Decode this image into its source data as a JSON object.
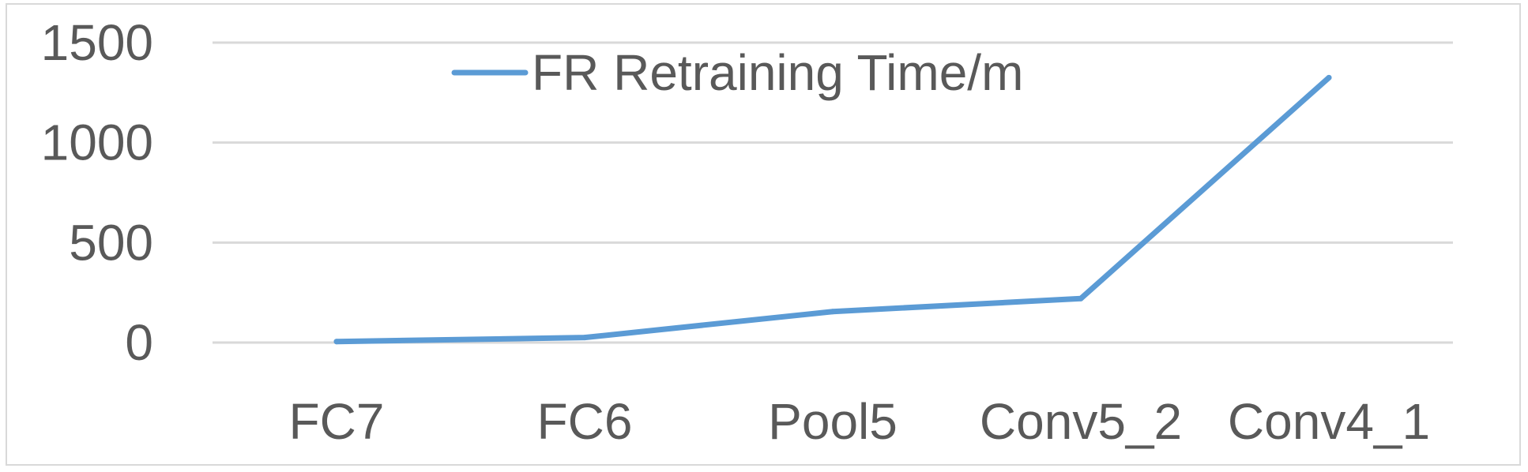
{
  "chart_data": {
    "type": "line",
    "title": "",
    "xlabel": "",
    "ylabel": "",
    "categories": [
      "FC7",
      "FC6",
      "Pool5",
      "Conv5_2",
      "Conv4_1"
    ],
    "series": [
      {
        "name": "FR Retraining Time/m",
        "color": "#5b9bd5",
        "values": [
          5,
          25,
          155,
          220,
          1325
        ]
      }
    ],
    "ylim": [
      0,
      1500
    ],
    "yticks": [
      0,
      500,
      1000,
      1500
    ],
    "ytick_labels": [
      "0",
      "500",
      "1000",
      "1500"
    ],
    "grid": true,
    "legend_position": "top-center"
  }
}
